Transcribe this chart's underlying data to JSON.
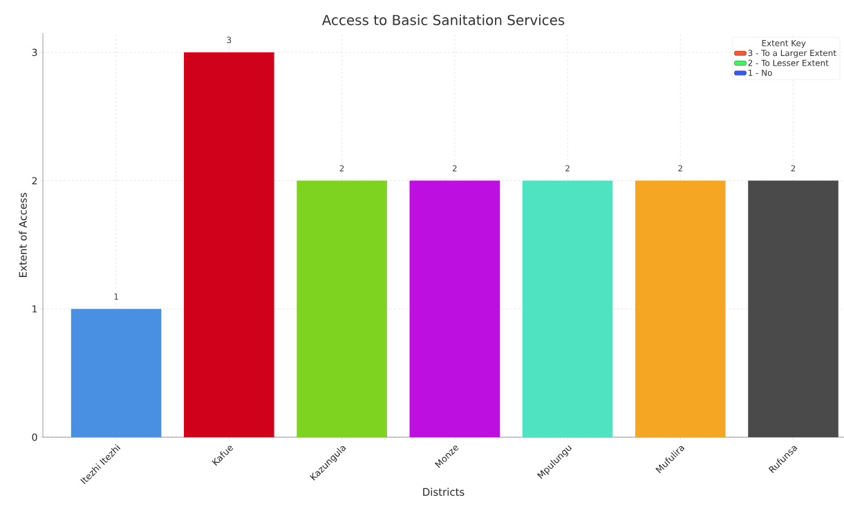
{
  "chart_data": {
    "type": "bar",
    "title": "Access to Basic Sanitation Services",
    "xlabel": "Districts",
    "ylabel": "Extent of Access",
    "legend_title": "Extent Key",
    "categories": [
      "Itezhi Itezhi",
      "Kafue",
      "Kazungula",
      "Monze",
      "Mpulungu",
      "Mufulira",
      "Rufunsa"
    ],
    "series": [
      {
        "values": [
          1,
          3,
          2,
          2,
          2,
          2,
          2
        ],
        "colors": [
          "#4a90e2",
          "#d0021b",
          "#7ed321",
          "#bd10e0",
          "#50e3c2",
          "#f5a623",
          "#4a4a4a"
        ]
      },
      {
        "name": "3 - To a Larger Extent",
        "color": "#ff5733",
        "values": [
          null,
          null,
          null,
          null,
          null,
          null,
          null
        ]
      },
      {
        "name": "2 - To Lesser Extent",
        "color": "#33ff57",
        "values": [
          null,
          null,
          null,
          null,
          null,
          null,
          null
        ]
      },
      {
        "name": "1 - No",
        "color": "#3357ff",
        "values": [
          null,
          null,
          null,
          null,
          null,
          null,
          null
        ]
      }
    ],
    "ylim": [
      0,
      3.15
    ],
    "yticks": [
      0,
      1,
      2,
      3
    ],
    "grid": true,
    "legend": "top right",
    "data_labels": true
  }
}
